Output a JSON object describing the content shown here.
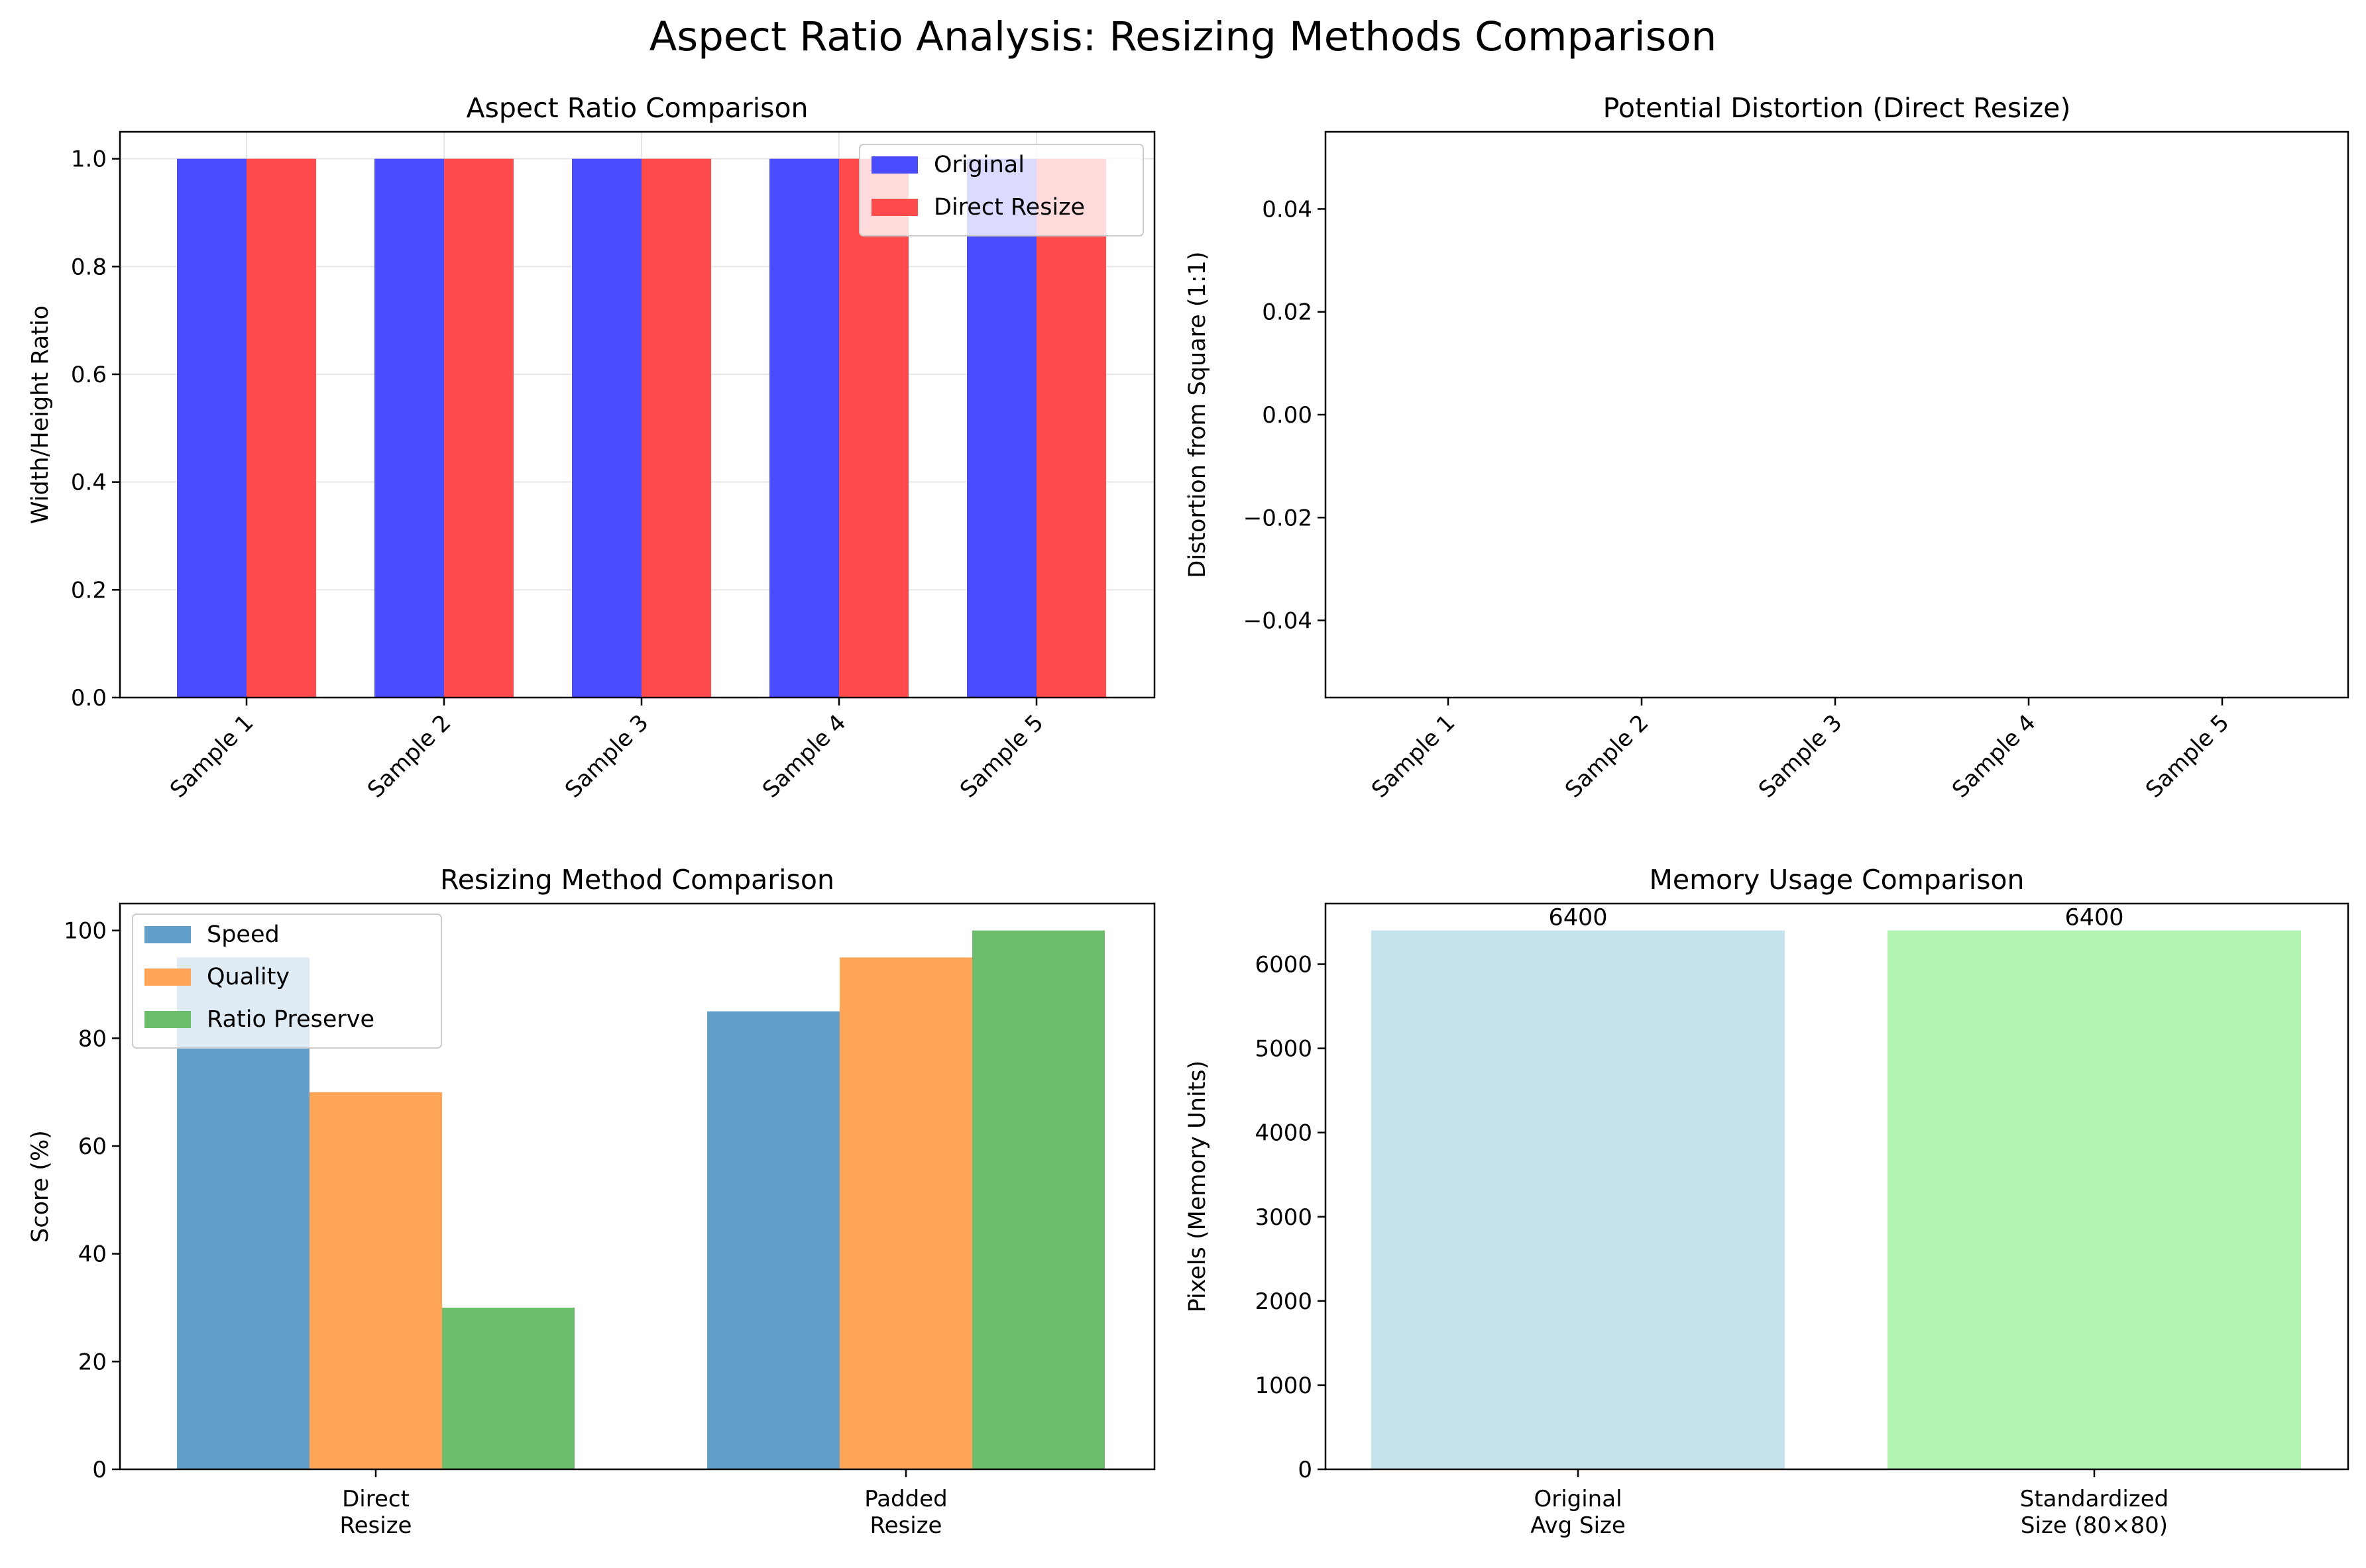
{
  "figure": {
    "suptitle": "Aspect Ratio Analysis: Resizing Methods Comparison"
  },
  "chart_data": [
    {
      "type": "bar",
      "title": "Aspect Ratio Comparison",
      "xlabel": "",
      "ylabel": "Width/Height Ratio",
      "categories": [
        "Sample 1",
        "Sample 2",
        "Sample 3",
        "Sample 4",
        "Sample 5"
      ],
      "series": [
        {
          "name": "Original",
          "values": [
            1.0,
            1.0,
            1.0,
            1.0,
            1.0
          ],
          "color": "#4b4bff"
        },
        {
          "name": "Direct Resize",
          "values": [
            1.0,
            1.0,
            1.0,
            1.0,
            1.0
          ],
          "color": "#ff4b4b"
        }
      ],
      "ylim": [
        0,
        1.05
      ],
      "yticks": [
        "0.0",
        "0.2",
        "0.4",
        "0.6",
        "0.8",
        "1.0"
      ],
      "grid": true,
      "legend": "upper-right",
      "xtick_rotation": 45
    },
    {
      "type": "bar",
      "title": "Potential Distortion (Direct Resize)",
      "xlabel": "",
      "ylabel": "Distortion from Square (1:1)",
      "categories": [
        "Sample 1",
        "Sample 2",
        "Sample 3",
        "Sample 4",
        "Sample 5"
      ],
      "values": [
        0,
        0,
        0,
        0,
        0
      ],
      "ylim": [
        -0.055,
        0.055
      ],
      "yticks": [
        "0.04",
        "0.02",
        "0.00",
        "−0.02",
        "−0.04"
      ],
      "ytick_values": [
        0.04,
        0.02,
        0.0,
        -0.02,
        -0.04
      ],
      "grid": false,
      "xtick_rotation": 45
    },
    {
      "type": "bar",
      "title": "Resizing Method Comparison",
      "xlabel": "",
      "ylabel": "Score (%)",
      "categories": [
        [
          "Direct",
          "Resize"
        ],
        [
          "Padded",
          "Resize"
        ]
      ],
      "series": [
        {
          "name": "Speed",
          "values": [
            95,
            85
          ],
          "color": "#62a0cb"
        },
        {
          "name": "Quality",
          "values": [
            70,
            95
          ],
          "color": "#ffa557"
        },
        {
          "name": "Ratio Preserve",
          "values": [
            30,
            100
          ],
          "color": "#6bbc6b"
        }
      ],
      "ylim": [
        0,
        105
      ],
      "yticks": [
        "0",
        "20",
        "40",
        "60",
        "80",
        "100"
      ],
      "grid": false,
      "legend": "upper-left"
    },
    {
      "type": "bar",
      "title": "Memory Usage Comparison",
      "xlabel": "",
      "ylabel": "Pixels (Memory Units)",
      "categories": [
        [
          "Original",
          "Avg Size"
        ],
        [
          "Standardized",
          "Size (80×80)"
        ]
      ],
      "values": [
        6400,
        6400
      ],
      "data_labels": [
        "6400",
        "6400"
      ],
      "colors": [
        "#c5e3ed",
        "#b1f5b1"
      ],
      "ylim": [
        0,
        6720
      ],
      "yticks": [
        "0",
        "1000",
        "2000",
        "3000",
        "4000",
        "5000",
        "6000"
      ],
      "grid": false
    }
  ]
}
